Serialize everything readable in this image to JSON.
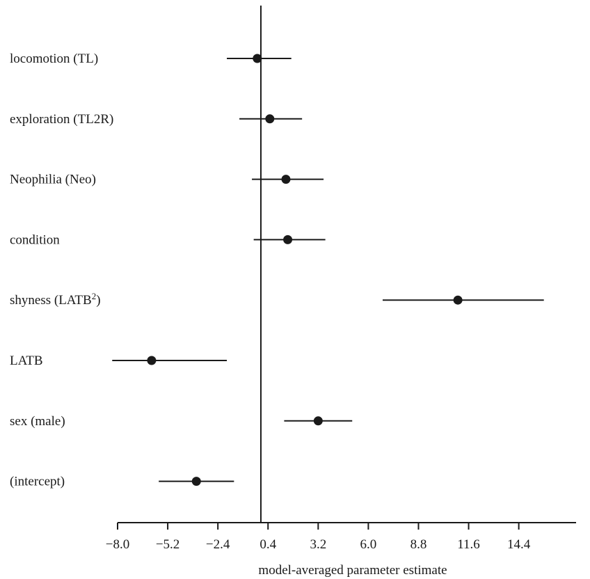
{
  "chart_data": {
    "type": "scatter",
    "subtype": "forest-plot",
    "title": "",
    "xlabel": "model-averaged parameter estimate",
    "ylabel": "",
    "xlim": [
      -8.0,
      17.6
    ],
    "ticks": [
      -8.0,
      -5.2,
      -2.4,
      0.4,
      3.2,
      6.0,
      8.8,
      11.6,
      14.4
    ],
    "tick_labels": [
      "−8.0",
      "−5.2",
      "−2.4",
      "0.4",
      "3.2",
      "6.0",
      "8.8",
      "11.6",
      "14.4"
    ],
    "reference_line": 0,
    "grid": false,
    "point_color": "#1a1a1a",
    "categories": [
      {
        "label": "locomotion (TL)",
        "estimate": -0.2,
        "lower": -1.9,
        "upper": 1.7
      },
      {
        "label": "exploration (TL2R)",
        "estimate": 0.5,
        "lower": -1.2,
        "upper": 2.3
      },
      {
        "label": "Neophilia (Neo)",
        "estimate": 1.4,
        "lower": -0.5,
        "upper": 3.5
      },
      {
        "label": "condition",
        "estimate": 1.5,
        "lower": -0.4,
        "upper": 3.6
      },
      {
        "label": "shyness (LATB",
        "label_sup": "2",
        "label_tail": ")",
        "estimate": 11.0,
        "lower": 6.8,
        "upper": 15.8
      },
      {
        "label": "LATB",
        "estimate": -6.1,
        "lower": -8.3,
        "upper": -1.9
      },
      {
        "label": "sex (male)",
        "estimate": 3.2,
        "lower": 1.3,
        "upper": 5.1
      },
      {
        "label": "(intercept)",
        "estimate": -3.6,
        "lower": -5.7,
        "upper": -1.5
      }
    ]
  }
}
